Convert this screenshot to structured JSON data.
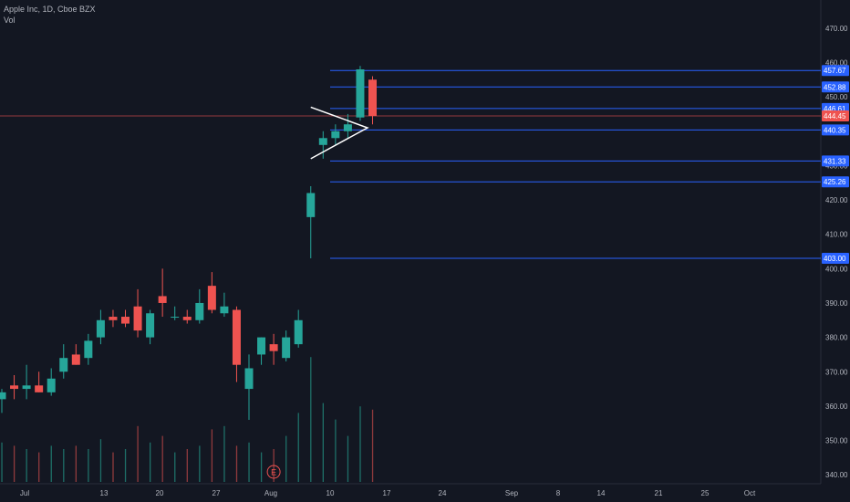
{
  "header": {
    "title": "Apple Inc, 1D, Cboe BZX",
    "volume_label": "Vol"
  },
  "colors": {
    "background": "#131722",
    "up": "#26a69a",
    "down": "#ef5350",
    "up_volume": "#1e6f68",
    "down_volume": "#8f3a3d",
    "level_line": "#2962ff",
    "level_tag": "#2962ff",
    "price_line": "#ef5350",
    "axis_text": "#b2b5be",
    "pattern": "#ffffff",
    "earnings_marker": "#ef5350"
  },
  "chart_data": {
    "type": "candlestick",
    "symbol": "Apple Inc",
    "interval": "1D",
    "exchange": "Cboe BZX",
    "ylim": [
      335,
      475
    ],
    "y_ticks": [
      340,
      350,
      360,
      370,
      380,
      390,
      400,
      410,
      420,
      430,
      440,
      450,
      460,
      470
    ],
    "x_ticks": [
      {
        "label": "Jul",
        "date": "2023-07-01"
      },
      {
        "label": "13",
        "date": "2023-07-13"
      },
      {
        "label": "20",
        "date": "2023-07-20"
      },
      {
        "label": "27",
        "date": "2023-07-27"
      },
      {
        "label": "Aug",
        "date": "2023-08-01"
      },
      {
        "label": "10",
        "date": "2023-08-10"
      },
      {
        "label": "17",
        "date": "2023-08-17"
      },
      {
        "label": "24",
        "date": "2023-08-24"
      },
      {
        "label": "Sep",
        "date": "2023-09-01"
      },
      {
        "label": "8",
        "date": "2023-09-08"
      },
      {
        "label": "14",
        "date": "2023-09-14"
      },
      {
        "label": "21",
        "date": "2023-09-21"
      },
      {
        "label": "25",
        "date": "2023-09-25"
      },
      {
        "label": "Oct",
        "date": "2023-10-01"
      }
    ],
    "candles": [
      {
        "date": "2023-07-03",
        "open": 362,
        "high": 365,
        "low": 358,
        "close": 364
      },
      {
        "date": "2023-07-05",
        "open": 366,
        "high": 369,
        "low": 362,
        "close": 365
      },
      {
        "date": "2023-07-06",
        "open": 365,
        "high": 372,
        "low": 362,
        "close": 366
      },
      {
        "date": "2023-07-07",
        "open": 366,
        "high": 370,
        "low": 364,
        "close": 364
      },
      {
        "date": "2023-07-10",
        "open": 364,
        "high": 371,
        "low": 363,
        "close": 368
      },
      {
        "date": "2023-07-11",
        "open": 370,
        "high": 378,
        "low": 368,
        "close": 374
      },
      {
        "date": "2023-07-12",
        "open": 375,
        "high": 378,
        "low": 372,
        "close": 372
      },
      {
        "date": "2023-07-13",
        "open": 374,
        "high": 381,
        "low": 372,
        "close": 379
      },
      {
        "date": "2023-07-14",
        "open": 380,
        "high": 388,
        "low": 378,
        "close": 385
      },
      {
        "date": "2023-07-17",
        "open": 386,
        "high": 388,
        "low": 383,
        "close": 385
      },
      {
        "date": "2023-07-18",
        "open": 386,
        "high": 388,
        "low": 383,
        "close": 384
      },
      {
        "date": "2023-07-19",
        "open": 389,
        "high": 394,
        "low": 380,
        "close": 382
      },
      {
        "date": "2023-07-20",
        "open": 380,
        "high": 388,
        "low": 378,
        "close": 387
      },
      {
        "date": "2023-07-21",
        "open": 392,
        "high": 400,
        "low": 386,
        "close": 390
      },
      {
        "date": "2023-07-24",
        "open": 386,
        "high": 389,
        "low": 385,
        "close": 386
      },
      {
        "date": "2023-07-25",
        "open": 386,
        "high": 388,
        "low": 384,
        "close": 385
      },
      {
        "date": "2023-07-26",
        "open": 385,
        "high": 394,
        "low": 384,
        "close": 390
      },
      {
        "date": "2023-07-27",
        "open": 395,
        "high": 399,
        "low": 387,
        "close": 388
      },
      {
        "date": "2023-07-28",
        "open": 387,
        "high": 393,
        "low": 386,
        "close": 389
      },
      {
        "date": "2023-07-31",
        "open": 388,
        "high": 389,
        "low": 367,
        "close": 372
      },
      {
        "date": "2023-08-01",
        "open": 365,
        "high": 375,
        "low": 356,
        "close": 371
      },
      {
        "date": "2023-08-02",
        "open": 375,
        "high": 380,
        "low": 372,
        "close": 380
      },
      {
        "date": "2023-08-03",
        "open": 378,
        "high": 381,
        "low": 372,
        "close": 376
      },
      {
        "date": "2023-08-04",
        "open": 374,
        "high": 382,
        "low": 373,
        "close": 380
      },
      {
        "date": "2023-08-07",
        "open": 378,
        "high": 388,
        "low": 377,
        "close": 385
      },
      {
        "date": "2023-08-08",
        "open": 415,
        "high": 424,
        "low": 403,
        "close": 422
      },
      {
        "date": "2023-08-09",
        "open": 436,
        "high": 440,
        "low": 432,
        "close": 438
      },
      {
        "date": "2023-08-10",
        "open": 438,
        "high": 442,
        "low": 436,
        "close": 440
      },
      {
        "date": "2023-08-11",
        "open": 440,
        "high": 445,
        "low": 438,
        "close": 442
      },
      {
        "date": "2023-08-14",
        "open": 444,
        "high": 459,
        "low": 443,
        "close": 458
      },
      {
        "date": "2023-08-15",
        "open": 455,
        "high": 456,
        "low": 442,
        "close": 444.45
      }
    ],
    "volume": [
      {
        "date": "2023-07-03",
        "value": 60,
        "dir": "up"
      },
      {
        "date": "2023-07-05",
        "value": 55,
        "dir": "down"
      },
      {
        "date": "2023-07-06",
        "value": 50,
        "dir": "up"
      },
      {
        "date": "2023-07-07",
        "value": 45,
        "dir": "down"
      },
      {
        "date": "2023-07-10",
        "value": 55,
        "dir": "up"
      },
      {
        "date": "2023-07-11",
        "value": 50,
        "dir": "up"
      },
      {
        "date": "2023-07-12",
        "value": 55,
        "dir": "down"
      },
      {
        "date": "2023-07-13",
        "value": 50,
        "dir": "up"
      },
      {
        "date": "2023-07-14",
        "value": 65,
        "dir": "up"
      },
      {
        "date": "2023-07-17",
        "value": 45,
        "dir": "down"
      },
      {
        "date": "2023-07-18",
        "value": 50,
        "dir": "up"
      },
      {
        "date": "2023-07-19",
        "value": 85,
        "dir": "down"
      },
      {
        "date": "2023-07-20",
        "value": 60,
        "dir": "up"
      },
      {
        "date": "2023-07-21",
        "value": 70,
        "dir": "down"
      },
      {
        "date": "2023-07-24",
        "value": 45,
        "dir": "up"
      },
      {
        "date": "2023-07-25",
        "value": 50,
        "dir": "down"
      },
      {
        "date": "2023-07-26",
        "value": 55,
        "dir": "up"
      },
      {
        "date": "2023-07-27",
        "value": 80,
        "dir": "down"
      },
      {
        "date": "2023-07-28",
        "value": 85,
        "dir": "up"
      },
      {
        "date": "2023-07-31",
        "value": 55,
        "dir": "down"
      },
      {
        "date": "2023-08-01",
        "value": 60,
        "dir": "up"
      },
      {
        "date": "2023-08-02",
        "value": 45,
        "dir": "up"
      },
      {
        "date": "2023-08-03",
        "value": 50,
        "dir": "down"
      },
      {
        "date": "2023-08-04",
        "value": 70,
        "dir": "up"
      },
      {
        "date": "2023-08-07",
        "value": 105,
        "dir": "up"
      },
      {
        "date": "2023-08-08",
        "value": 190,
        "dir": "up"
      },
      {
        "date": "2023-08-09",
        "value": 120,
        "dir": "up"
      },
      {
        "date": "2023-08-10",
        "value": 95,
        "dir": "up"
      },
      {
        "date": "2023-08-11",
        "value": 70,
        "dir": "up"
      },
      {
        "date": "2023-08-14",
        "value": 115,
        "dir": "up"
      },
      {
        "date": "2023-08-15",
        "value": 110,
        "dir": "down"
      }
    ],
    "horizontal_levels": [
      {
        "value": 457.67,
        "label": "457.67"
      },
      {
        "value": 452.88,
        "label": "452.88"
      },
      {
        "value": 446.61,
        "label": "446.61"
      },
      {
        "value": 440.35,
        "label": "440.35"
      },
      {
        "value": 431.33,
        "label": "431.33"
      },
      {
        "value": 425.26,
        "label": "425.26"
      },
      {
        "value": 403.0,
        "label": "403.00"
      }
    ],
    "current_price": {
      "value": 444.45,
      "label": "444.45"
    },
    "triangle_pattern": [
      {
        "date": "2023-08-08",
        "price": 447
      },
      {
        "date": "2023-08-14",
        "price": 441
      },
      {
        "date": "2023-08-08",
        "price": 432
      }
    ],
    "earnings_marker": {
      "date": "2023-08-03",
      "label": "E"
    }
  }
}
